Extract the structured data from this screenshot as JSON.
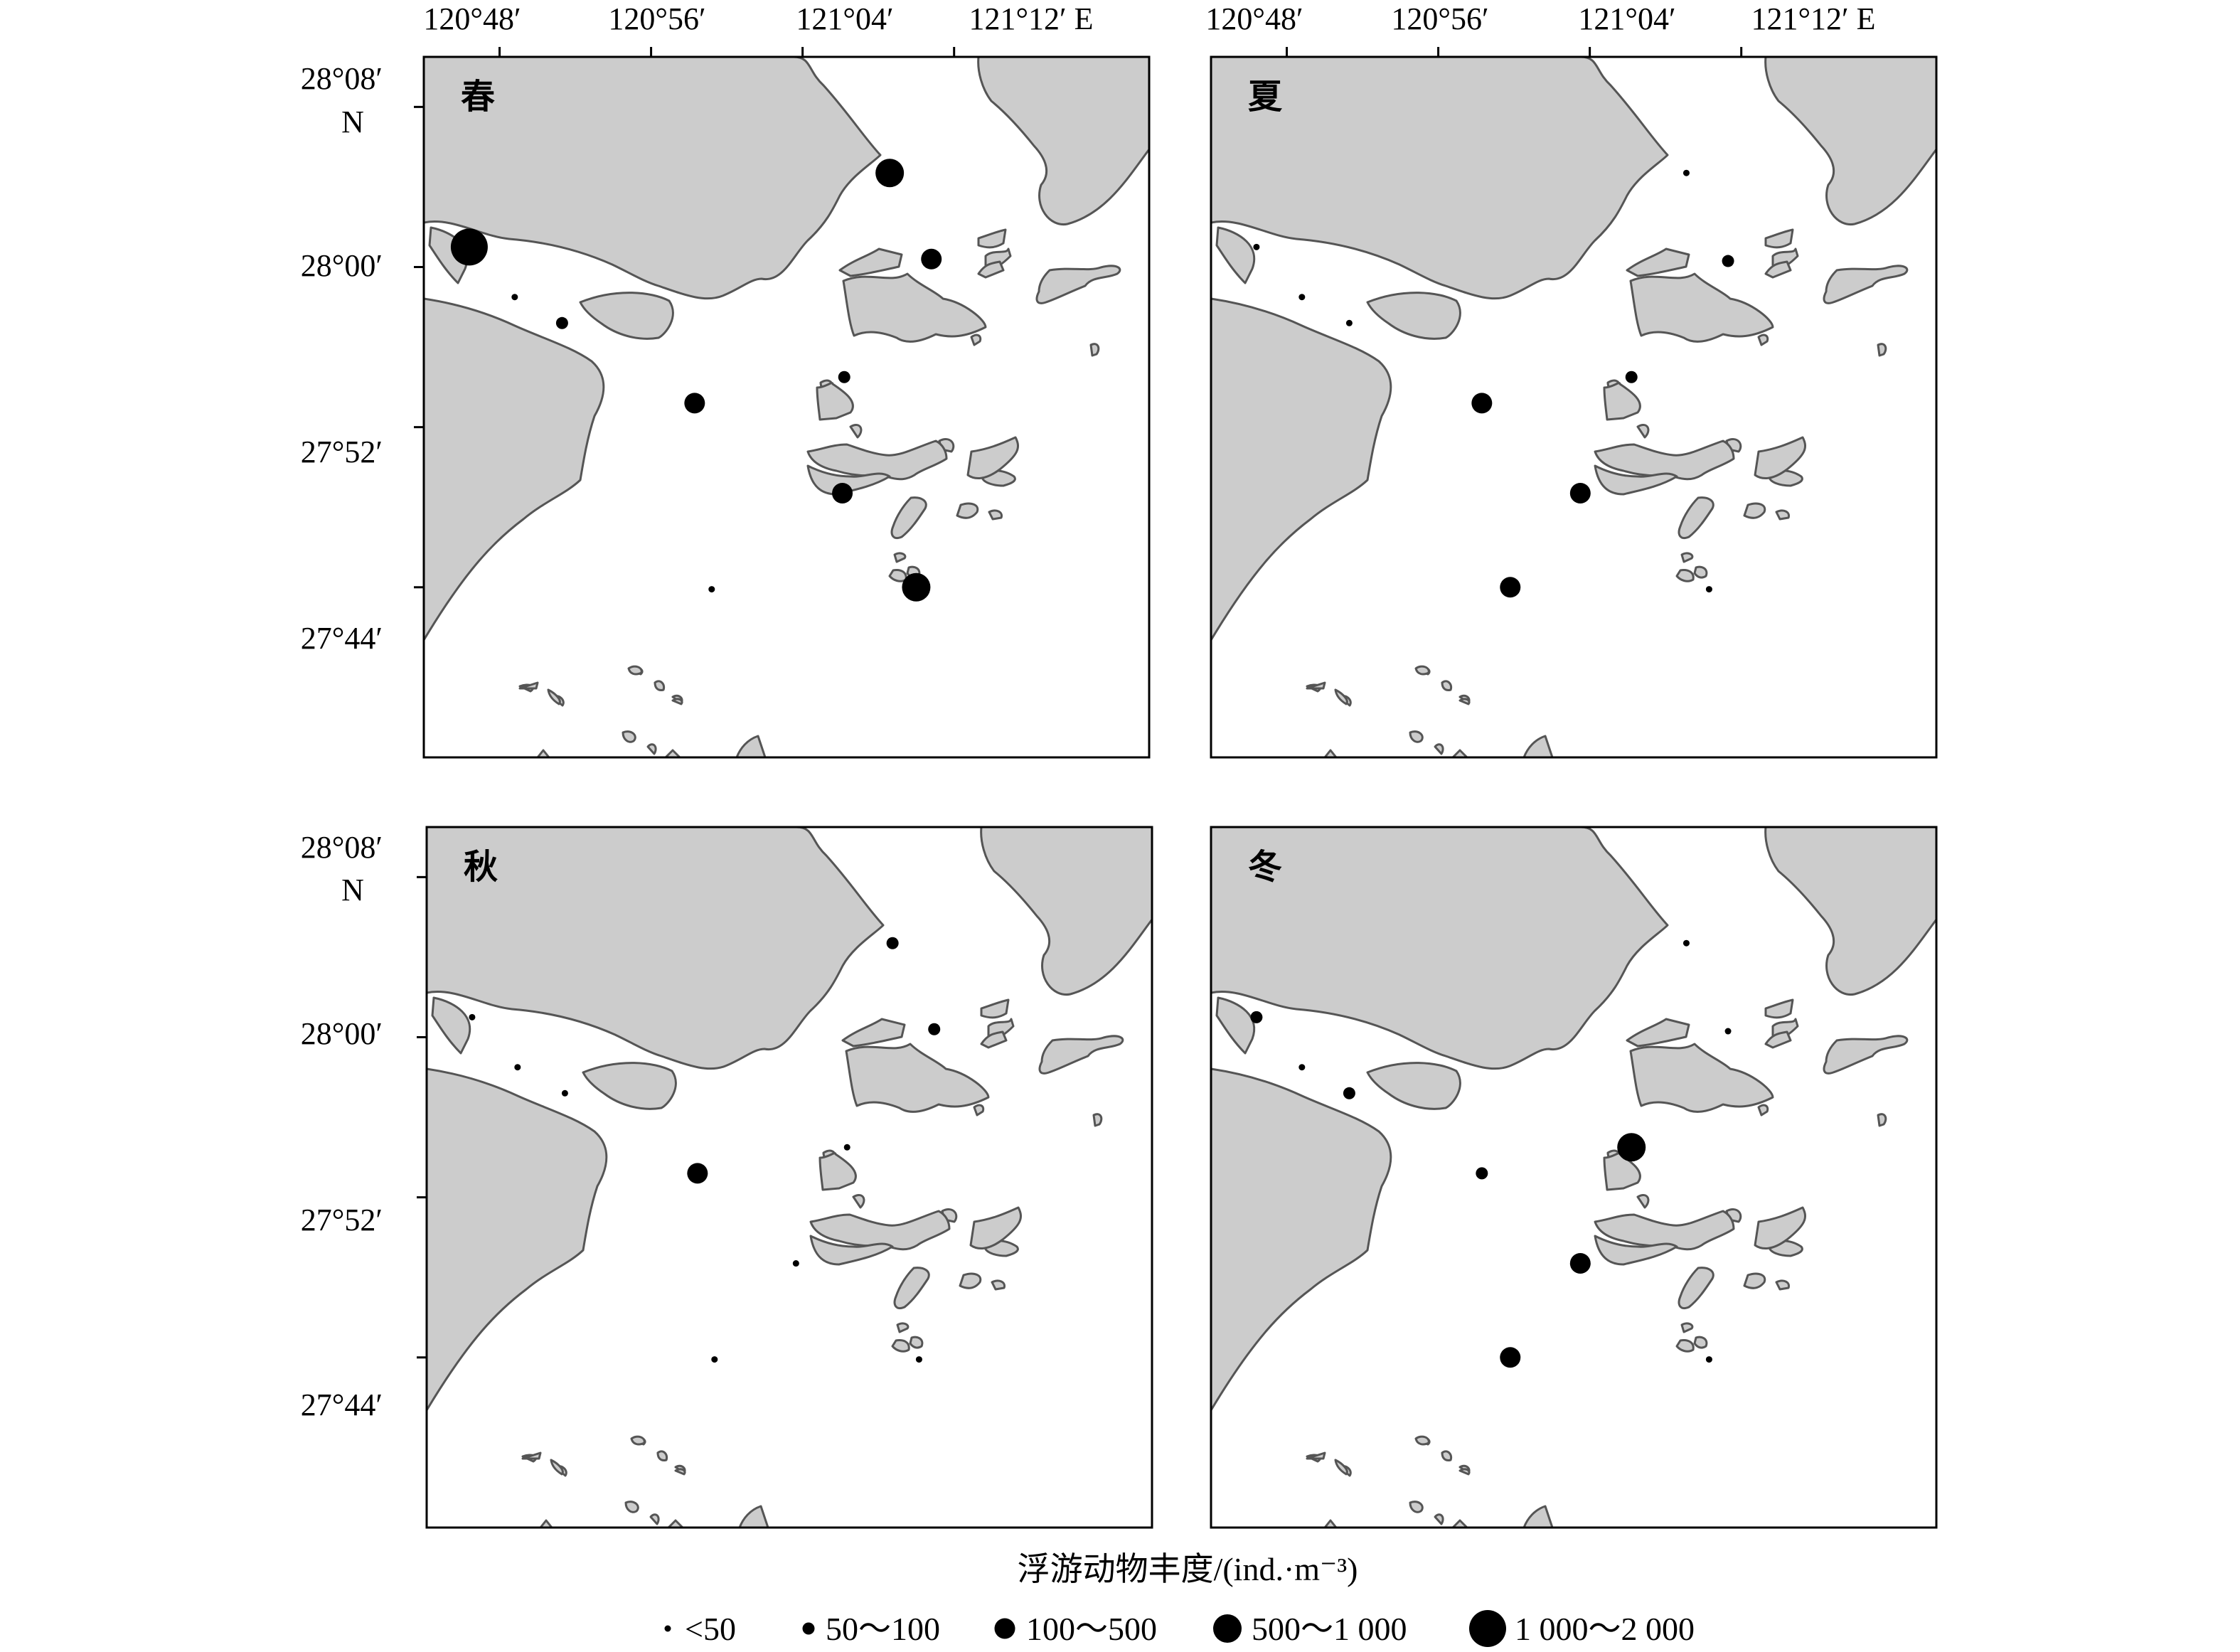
{
  "axes": {
    "lon_ticks": [
      "120°48′",
      "120°56′",
      "121°04′",
      "121°12′ E"
    ],
    "lat_ticks": [
      "28°08′",
      "28°00′",
      "27°52′",
      "27°44′"
    ],
    "lat_hemisphere": "N"
  },
  "panels": [
    {
      "season": "春",
      "stations": [
        {
          "lon_min": 46.4,
          "lat_min": 61.0,
          "cls": 4
        },
        {
          "lon_min": 48.8,
          "lat_min": 58.5,
          "cls": 0
        },
        {
          "lon_min": 51.3,
          "lat_min": 57.2,
          "cls": 1
        },
        {
          "lon_min": 58.3,
          "lat_min": 53.2,
          "cls": 2
        },
        {
          "lon_min": 66.2,
          "lat_min": 54.5,
          "cls": 1
        },
        {
          "lon_min": 66.1,
          "lat_min": 48.7,
          "cls": 2
        },
        {
          "lon_min": 59.2,
          "lat_min": 43.9,
          "cls": 0
        },
        {
          "lon_min": 68.6,
          "lat_min": 64.7,
          "cls": 3
        },
        {
          "lon_min": 70.8,
          "lat_min": 60.4,
          "cls": 2
        },
        {
          "lon_min": 70.0,
          "lat_min": 44.0,
          "cls": 3
        }
      ]
    },
    {
      "season": "夏",
      "stations": [
        {
          "lon_min": 46.4,
          "lat_min": 61.0,
          "cls": 0
        },
        {
          "lon_min": 48.8,
          "lat_min": 58.5,
          "cls": 0
        },
        {
          "lon_min": 51.3,
          "lat_min": 57.2,
          "cls": 0
        },
        {
          "lon_min": 58.3,
          "lat_min": 53.2,
          "cls": 2
        },
        {
          "lon_min": 66.2,
          "lat_min": 54.5,
          "cls": 1
        },
        {
          "lon_min": 63.5,
          "lat_min": 48.7,
          "cls": 2
        },
        {
          "lon_min": 59.8,
          "lat_min": 44.0,
          "cls": 2
        },
        {
          "lon_min": 69.1,
          "lat_min": 64.7,
          "cls": 0
        },
        {
          "lon_min": 71.3,
          "lat_min": 60.3,
          "cls": 1
        },
        {
          "lon_min": 70.3,
          "lat_min": 43.9,
          "cls": 0
        }
      ]
    },
    {
      "season": "秋",
      "stations": [
        {
          "lon_min": 46.4,
          "lat_min": 61.0,
          "cls": 0
        },
        {
          "lon_min": 48.8,
          "lat_min": 58.5,
          "cls": 0
        },
        {
          "lon_min": 51.3,
          "lat_min": 57.2,
          "cls": 0
        },
        {
          "lon_min": 58.3,
          "lat_min": 53.2,
          "cls": 2
        },
        {
          "lon_min": 66.2,
          "lat_min": 54.5,
          "cls": 0
        },
        {
          "lon_min": 63.5,
          "lat_min": 48.7,
          "cls": 0
        },
        {
          "lon_min": 59.2,
          "lat_min": 43.9,
          "cls": 0
        },
        {
          "lon_min": 68.6,
          "lat_min": 64.7,
          "cls": 1
        },
        {
          "lon_min": 70.8,
          "lat_min": 60.4,
          "cls": 1
        },
        {
          "lon_min": 70.0,
          "lat_min": 43.9,
          "cls": 0
        }
      ]
    },
    {
      "season": "冬",
      "stations": [
        {
          "lon_min": 46.4,
          "lat_min": 61.0,
          "cls": 1
        },
        {
          "lon_min": 48.8,
          "lat_min": 58.5,
          "cls": 0
        },
        {
          "lon_min": 51.3,
          "lat_min": 57.2,
          "cls": 1
        },
        {
          "lon_min": 58.3,
          "lat_min": 53.2,
          "cls": 1
        },
        {
          "lon_min": 66.2,
          "lat_min": 54.5,
          "cls": 3
        },
        {
          "lon_min": 63.5,
          "lat_min": 48.7,
          "cls": 2
        },
        {
          "lon_min": 59.8,
          "lat_min": 44.0,
          "cls": 2
        },
        {
          "lon_min": 69.1,
          "lat_min": 64.7,
          "cls": 0
        },
        {
          "lon_min": 71.3,
          "lat_min": 60.3,
          "cls": 0
        },
        {
          "lon_min": 70.3,
          "lat_min": 43.9,
          "cls": 0
        }
      ]
    }
  ],
  "legend": {
    "title": "浮游动物丰度/(ind.·m⁻³)",
    "classes": [
      "<50",
      "50～100",
      "100～500",
      "500～1 000",
      "1 000～2 000"
    ]
  }
}
